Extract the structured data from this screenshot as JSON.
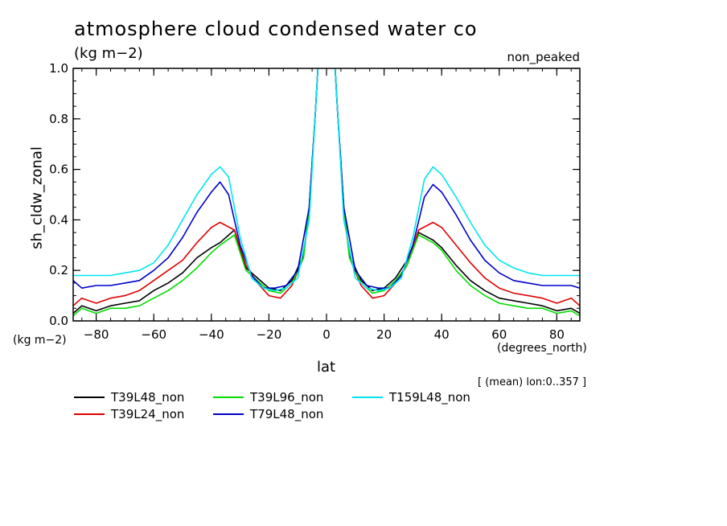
{
  "header": {
    "title": "atmosphere cloud condensed water co",
    "units": "(kg m−2)",
    "tag": "non_peaked"
  },
  "axes": {
    "ylabel": "sh_cldw_zonal",
    "y_units": "(kg m−2)",
    "xlabel": "lat",
    "x_units": "(degrees_north)",
    "note": "[ (mean) lon:0..357 ]"
  },
  "chart_data": {
    "type": "line",
    "xlim": [
      -88,
      88
    ],
    "ylim": [
      0,
      1.0
    ],
    "xticks": [
      -80,
      -60,
      -40,
      -20,
      0,
      20,
      40,
      60,
      80
    ],
    "xtick_labels": [
      "−80",
      "−60",
      "−40",
      "−20",
      "0",
      "20",
      "40",
      "60",
      "80"
    ],
    "yticks": [
      0,
      0.2,
      0.4,
      0.6,
      0.8,
      1.0
    ],
    "ytick_labels": [
      "0.0",
      "0.2",
      "0.4",
      "0.6",
      "0.8",
      "1.0"
    ],
    "legend_position": "bottom-left",
    "series": [
      {
        "name": "T39L48_non",
        "color": "#000000",
        "x": [
          -88,
          -85,
          -80,
          -75,
          -70,
          -65,
          -60,
          -55,
          -50,
          -45,
          -40,
          -37,
          -32,
          -28,
          -24,
          -20,
          -16,
          -12,
          -8,
          -6,
          -4,
          -3,
          -2,
          2,
          3,
          4,
          6,
          8,
          12,
          16,
          20,
          24,
          28,
          32,
          37,
          40,
          45,
          50,
          55,
          60,
          65,
          70,
          75,
          80,
          85,
          88
        ],
        "y": [
          0.03,
          0.06,
          0.04,
          0.06,
          0.07,
          0.08,
          0.12,
          0.15,
          0.19,
          0.25,
          0.29,
          0.31,
          0.36,
          0.21,
          0.17,
          0.13,
          0.12,
          0.16,
          0.26,
          0.45,
          0.8,
          1.0,
          1.3,
          1.3,
          1.0,
          0.8,
          0.45,
          0.26,
          0.16,
          0.12,
          0.13,
          0.17,
          0.24,
          0.35,
          0.32,
          0.29,
          0.22,
          0.16,
          0.12,
          0.09,
          0.08,
          0.07,
          0.06,
          0.04,
          0.05,
          0.03
        ]
      },
      {
        "name": "T39L24_non",
        "color": "#e00000",
        "x": [
          -88,
          -85,
          -80,
          -75,
          -70,
          -65,
          -60,
          -55,
          -50,
          -45,
          -40,
          -37,
          -32,
          -28,
          -24,
          -20,
          -16,
          -12,
          -8,
          -6,
          -4,
          -3,
          -2,
          2,
          3,
          4,
          6,
          8,
          12,
          16,
          20,
          24,
          28,
          32,
          37,
          40,
          45,
          50,
          55,
          60,
          65,
          70,
          75,
          80,
          85,
          88
        ],
        "y": [
          0.06,
          0.09,
          0.07,
          0.09,
          0.1,
          0.12,
          0.16,
          0.2,
          0.24,
          0.31,
          0.37,
          0.39,
          0.36,
          0.22,
          0.15,
          0.1,
          0.09,
          0.14,
          0.25,
          0.45,
          0.8,
          1.0,
          1.3,
          1.3,
          1.0,
          0.8,
          0.45,
          0.25,
          0.14,
          0.09,
          0.1,
          0.15,
          0.22,
          0.36,
          0.39,
          0.37,
          0.3,
          0.23,
          0.17,
          0.13,
          0.11,
          0.1,
          0.09,
          0.07,
          0.09,
          0.06
        ]
      },
      {
        "name": "T39L96_non",
        "color": "#00dd00",
        "x": [
          -88,
          -85,
          -80,
          -75,
          -70,
          -65,
          -60,
          -55,
          -50,
          -45,
          -40,
          -37,
          -32,
          -28,
          -24,
          -20,
          -16,
          -12,
          -8,
          -6,
          -4,
          -3,
          -2,
          2,
          3,
          4,
          6,
          8,
          12,
          16,
          20,
          24,
          28,
          32,
          37,
          40,
          45,
          50,
          55,
          60,
          65,
          70,
          75,
          80,
          85,
          88
        ],
        "y": [
          0.02,
          0.05,
          0.03,
          0.05,
          0.05,
          0.06,
          0.09,
          0.12,
          0.16,
          0.21,
          0.27,
          0.3,
          0.34,
          0.2,
          0.16,
          0.12,
          0.11,
          0.15,
          0.25,
          0.45,
          0.8,
          1.0,
          1.3,
          1.3,
          1.0,
          0.8,
          0.45,
          0.25,
          0.15,
          0.11,
          0.12,
          0.16,
          0.22,
          0.34,
          0.31,
          0.28,
          0.2,
          0.14,
          0.1,
          0.07,
          0.06,
          0.05,
          0.05,
          0.03,
          0.04,
          0.02
        ]
      },
      {
        "name": "T79L48_non",
        "color": "#0000c8",
        "x": [
          -88,
          -85,
          -80,
          -75,
          -70,
          -65,
          -60,
          -55,
          -50,
          -45,
          -40,
          -37,
          -34,
          -30,
          -26,
          -22,
          -18,
          -14,
          -10,
          -6,
          -4,
          -3,
          -2,
          2,
          3,
          4,
          6,
          10,
          14,
          18,
          22,
          26,
          30,
          34,
          37,
          40,
          45,
          50,
          55,
          60,
          65,
          70,
          75,
          80,
          85,
          88
        ],
        "y": [
          0.16,
          0.13,
          0.14,
          0.14,
          0.15,
          0.16,
          0.2,
          0.25,
          0.33,
          0.43,
          0.51,
          0.55,
          0.5,
          0.3,
          0.18,
          0.13,
          0.13,
          0.14,
          0.2,
          0.45,
          0.8,
          1.0,
          1.3,
          1.3,
          1.0,
          0.8,
          0.45,
          0.2,
          0.14,
          0.13,
          0.13,
          0.18,
          0.3,
          0.49,
          0.54,
          0.51,
          0.42,
          0.32,
          0.24,
          0.19,
          0.16,
          0.15,
          0.14,
          0.14,
          0.14,
          0.13
        ]
      },
      {
        "name": "T159L48_non",
        "color": "#00e5f0",
        "x": [
          -88,
          -85,
          -80,
          -75,
          -70,
          -65,
          -60,
          -55,
          -50,
          -45,
          -40,
          -37,
          -34,
          -30,
          -26,
          -22,
          -18,
          -14,
          -10,
          -6,
          -4,
          -3,
          -2,
          2,
          3,
          4,
          6,
          10,
          14,
          18,
          22,
          26,
          30,
          34,
          37,
          40,
          45,
          50,
          55,
          60,
          65,
          70,
          75,
          80,
          85,
          88
        ],
        "y": [
          0.18,
          0.18,
          0.18,
          0.18,
          0.19,
          0.2,
          0.23,
          0.3,
          0.4,
          0.5,
          0.58,
          0.61,
          0.57,
          0.33,
          0.17,
          0.13,
          0.12,
          0.13,
          0.17,
          0.4,
          0.8,
          1.0,
          1.3,
          1.3,
          1.0,
          0.8,
          0.4,
          0.17,
          0.13,
          0.12,
          0.13,
          0.17,
          0.33,
          0.56,
          0.61,
          0.58,
          0.49,
          0.39,
          0.3,
          0.24,
          0.21,
          0.19,
          0.18,
          0.18,
          0.18,
          0.18
        ]
      }
    ]
  }
}
